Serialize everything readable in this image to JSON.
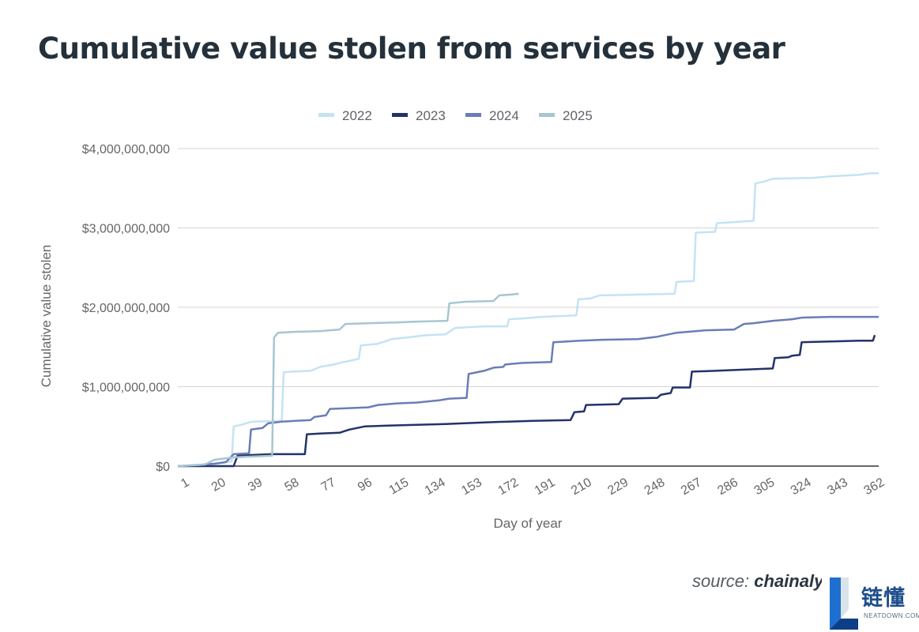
{
  "title": "Cumulative value stolen from services by year",
  "source": {
    "prefix": "source:",
    "brand": "chainalysi"
  },
  "logo": {
    "cn": "链懂",
    "en": "NEATDOWN.COM",
    "icon": "blue-L-logo-icon"
  },
  "chart_data": {
    "type": "line",
    "title": "Cumulative value stolen from services by year",
    "xlabel": "Day of year",
    "ylabel": "Cumulative value stolen",
    "xlim": [
      1,
      365
    ],
    "ylim": [
      0,
      4000000000
    ],
    "x_ticks": [
      1,
      20,
      39,
      58,
      77,
      96,
      115,
      134,
      153,
      172,
      191,
      210,
      229,
      248,
      267,
      286,
      305,
      324,
      343,
      362
    ],
    "y_ticks": [
      0,
      1000000000,
      2000000000,
      3000000000,
      4000000000
    ],
    "y_tick_labels": [
      "$0",
      "$1,000,000,000",
      "$2,000,000,000",
      "$3,000,000,000",
      "$4,000,000,000"
    ],
    "grid": true,
    "legend_position": "top",
    "series": [
      {
        "name": "2022",
        "color": "#c4e3f3",
        "points": [
          [
            1,
            0
          ],
          [
            20,
            30000000
          ],
          [
            29,
            60000000
          ],
          [
            30,
            500000000
          ],
          [
            34,
            520000000
          ],
          [
            38,
            550000000
          ],
          [
            40,
            560000000
          ],
          [
            55,
            570000000
          ],
          [
            56,
            1180000000
          ],
          [
            60,
            1190000000
          ],
          [
            70,
            1200000000
          ],
          [
            75,
            1250000000
          ],
          [
            82,
            1280000000
          ],
          [
            85,
            1300000000
          ],
          [
            95,
            1350000000
          ],
          [
            96,
            1520000000
          ],
          [
            105,
            1540000000
          ],
          [
            112,
            1600000000
          ],
          [
            120,
            1620000000
          ],
          [
            130,
            1650000000
          ],
          [
            140,
            1660000000
          ],
          [
            145,
            1740000000
          ],
          [
            160,
            1760000000
          ],
          [
            172,
            1760000000
          ],
          [
            173,
            1850000000
          ],
          [
            180,
            1860000000
          ],
          [
            190,
            1880000000
          ],
          [
            200,
            1890000000
          ],
          [
            208,
            1900000000
          ],
          [
            209,
            2100000000
          ],
          [
            215,
            2110000000
          ],
          [
            220,
            2150000000
          ],
          [
            240,
            2160000000
          ],
          [
            259,
            2170000000
          ],
          [
            260,
            2320000000
          ],
          [
            269,
            2330000000
          ],
          [
            270,
            2940000000
          ],
          [
            280,
            2950000000
          ],
          [
            281,
            3060000000
          ],
          [
            300,
            3090000000
          ],
          [
            301,
            3560000000
          ],
          [
            305,
            3580000000
          ],
          [
            310,
            3620000000
          ],
          [
            330,
            3630000000
          ],
          [
            340,
            3650000000
          ],
          [
            355,
            3670000000
          ],
          [
            361,
            3690000000
          ],
          [
            365,
            3690000000
          ]
        ]
      },
      {
        "name": "2023",
        "color": "#233268",
        "points": [
          [
            1,
            0
          ],
          [
            30,
            0
          ],
          [
            32,
            130000000
          ],
          [
            40,
            140000000
          ],
          [
            50,
            150000000
          ],
          [
            67,
            150000000
          ],
          [
            68,
            400000000
          ],
          [
            75,
            410000000
          ],
          [
            85,
            420000000
          ],
          [
            90,
            460000000
          ],
          [
            98,
            500000000
          ],
          [
            110,
            510000000
          ],
          [
            125,
            520000000
          ],
          [
            140,
            530000000
          ],
          [
            160,
            550000000
          ],
          [
            185,
            570000000
          ],
          [
            205,
            580000000
          ],
          [
            207,
            680000000
          ],
          [
            212,
            690000000
          ],
          [
            213,
            770000000
          ],
          [
            230,
            780000000
          ],
          [
            232,
            850000000
          ],
          [
            250,
            860000000
          ],
          [
            252,
            900000000
          ],
          [
            257,
            920000000
          ],
          [
            258,
            990000000
          ],
          [
            267,
            990000000
          ],
          [
            268,
            1190000000
          ],
          [
            280,
            1200000000
          ],
          [
            290,
            1210000000
          ],
          [
            300,
            1220000000
          ],
          [
            310,
            1230000000
          ],
          [
            311,
            1360000000
          ],
          [
            318,
            1370000000
          ],
          [
            320,
            1390000000
          ],
          [
            324,
            1400000000
          ],
          [
            325,
            1560000000
          ],
          [
            340,
            1570000000
          ],
          [
            355,
            1580000000
          ],
          [
            362,
            1580000000
          ],
          [
            363,
            1650000000
          ]
        ]
      },
      {
        "name": "2024",
        "color": "#6a7db8",
        "points": [
          [
            1,
            0
          ],
          [
            10,
            10000000
          ],
          [
            20,
            30000000
          ],
          [
            26,
            50000000
          ],
          [
            30,
            150000000
          ],
          [
            38,
            160000000
          ],
          [
            39,
            460000000
          ],
          [
            45,
            480000000
          ],
          [
            48,
            540000000
          ],
          [
            55,
            560000000
          ],
          [
            70,
            580000000
          ],
          [
            72,
            620000000
          ],
          [
            78,
            640000000
          ],
          [
            80,
            720000000
          ],
          [
            90,
            730000000
          ],
          [
            100,
            740000000
          ],
          [
            105,
            770000000
          ],
          [
            115,
            790000000
          ],
          [
            125,
            800000000
          ],
          [
            137,
            830000000
          ],
          [
            142,
            850000000
          ],
          [
            151,
            860000000
          ],
          [
            152,
            1160000000
          ],
          [
            160,
            1200000000
          ],
          [
            165,
            1240000000
          ],
          [
            170,
            1250000000
          ],
          [
            171,
            1280000000
          ],
          [
            180,
            1300000000
          ],
          [
            195,
            1310000000
          ],
          [
            196,
            1560000000
          ],
          [
            210,
            1580000000
          ],
          [
            220,
            1590000000
          ],
          [
            240,
            1600000000
          ],
          [
            250,
            1630000000
          ],
          [
            260,
            1680000000
          ],
          [
            275,
            1710000000
          ],
          [
            290,
            1720000000
          ],
          [
            295,
            1790000000
          ],
          [
            300,
            1800000000
          ],
          [
            310,
            1830000000
          ],
          [
            320,
            1850000000
          ],
          [
            325,
            1870000000
          ],
          [
            340,
            1880000000
          ],
          [
            365,
            1880000000
          ]
        ]
      },
      {
        "name": "2025",
        "color": "#a7c6d1",
        "points": [
          [
            1,
            0
          ],
          [
            15,
            20000000
          ],
          [
            20,
            80000000
          ],
          [
            30,
            110000000
          ],
          [
            40,
            120000000
          ],
          [
            50,
            130000000
          ],
          [
            51,
            1620000000
          ],
          [
            53,
            1680000000
          ],
          [
            60,
            1690000000
          ],
          [
            75,
            1700000000
          ],
          [
            85,
            1720000000
          ],
          [
            88,
            1790000000
          ],
          [
            100,
            1800000000
          ],
          [
            115,
            1810000000
          ],
          [
            125,
            1820000000
          ],
          [
            141,
            1830000000
          ],
          [
            142,
            2050000000
          ],
          [
            150,
            2070000000
          ],
          [
            165,
            2080000000
          ],
          [
            168,
            2150000000
          ],
          [
            174,
            2160000000
          ],
          [
            178,
            2170000000
          ]
        ]
      }
    ]
  }
}
